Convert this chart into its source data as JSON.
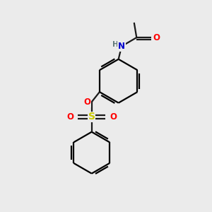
{
  "background_color": "#ebebeb",
  "bond_color": "#1a1a1a",
  "atom_colors": {
    "N": "#0000cc",
    "O": "#ff0000",
    "S": "#cccc00",
    "H": "#607878",
    "C": "#1a1a1a"
  },
  "figsize": [
    3.0,
    3.0
  ],
  "dpi": 100
}
